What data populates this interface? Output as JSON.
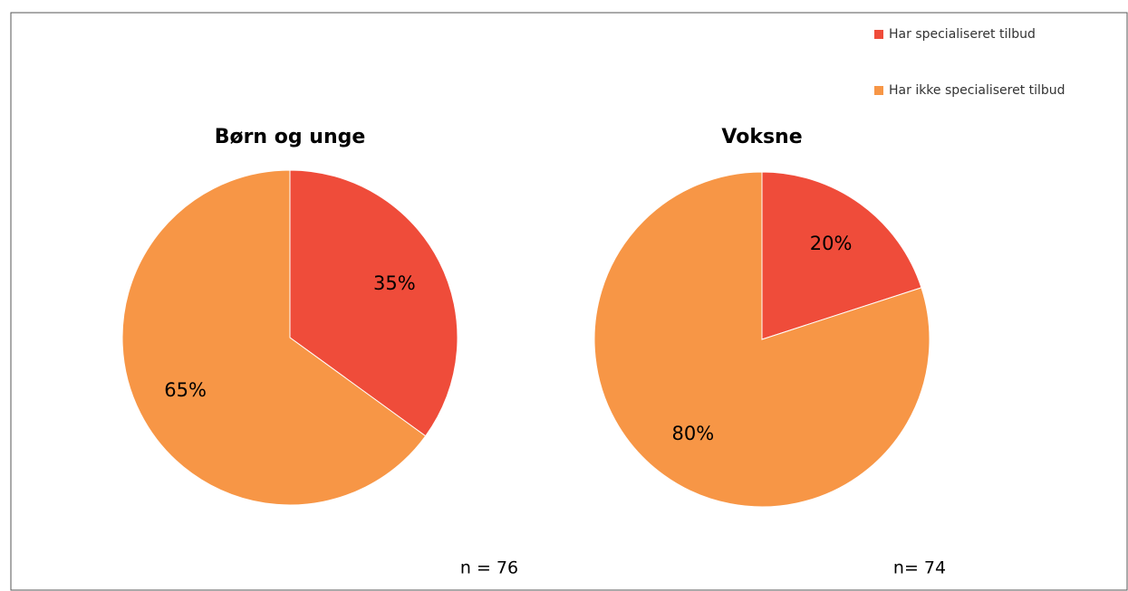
{
  "chart_data": [
    {
      "type": "pie",
      "title": "Børn og unge",
      "categories": [
        "Har specialiseret tilbud",
        "Har ikke specialiseret tilbud"
      ],
      "values": [
        35,
        65
      ],
      "value_labels": [
        "35%",
        "65%"
      ],
      "colors": [
        "#ef4c3a",
        "#f79646"
      ],
      "annotation": "n = 76"
    },
    {
      "type": "pie",
      "title": "Voksne",
      "categories": [
        "Har specialiseret tilbud",
        "Har ikke specialiseret tilbud"
      ],
      "values": [
        20,
        80
      ],
      "value_labels": [
        "20%",
        "80%"
      ],
      "colors": [
        "#ef4c3a",
        "#f79646"
      ],
      "annotation": "n= 74"
    }
  ]
}
